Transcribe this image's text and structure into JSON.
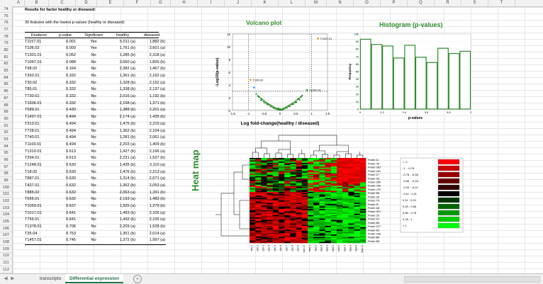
{
  "columns": [
    "A",
    "B",
    "C",
    "D",
    "E",
    "F",
    "G",
    "H",
    "I",
    "J",
    "K",
    "L",
    "M",
    "N",
    "O",
    "P",
    "Q",
    "R",
    "S",
    "T"
  ],
  "rows": [
    "74",
    "75",
    "76",
    "77",
    "78",
    "79",
    "80",
    "81",
    "82",
    "83",
    "84",
    "85",
    "86",
    "87",
    "88",
    "89",
    "90",
    "91",
    "92",
    "93",
    "94",
    "95",
    "96",
    "97",
    "98",
    "99",
    "100",
    "101",
    "102",
    "103",
    "104",
    "105",
    "106",
    "107",
    "108",
    "109",
    "110",
    "111",
    "112"
  ],
  "sheet": {
    "heading": "Results for factor healthy or diseased:",
    "subheading": "30 features with the lowest p-values (healthy or diseased):",
    "table": {
      "headers": [
        "Features",
        "p-value",
        "Significant",
        "healthy",
        "diseased"
      ],
      "rows": [
        [
          "T1157.01",
          "0.001",
          "Yes",
          "5,011 (a)",
          "1,882 (b)"
        ],
        [
          "T106.02",
          "0.003",
          "Yes",
          "1,761 (b)",
          "3,601 (a)"
        ],
        [
          "T1301.01",
          "0.052",
          "No",
          "1,285 (b)",
          "2,318 (a)"
        ],
        [
          "T1097.01",
          "0.088",
          "No",
          "3,660 (a)",
          "1,826 (b)"
        ],
        [
          "T98.02",
          "0.164",
          "No",
          "2,382 (a)",
          "1,467 (b)"
        ],
        [
          "T392.01",
          "0.332",
          "No",
          "1,361 (b)",
          "2,162 (a)"
        ],
        [
          "T30.02",
          "0.332",
          "No",
          "1,328 (b)",
          "2,152 (a)"
        ],
        [
          "T85.01",
          "0.332",
          "No",
          "1,338 (b)",
          "2,137 (a)"
        ],
        [
          "T730.01",
          "0.332",
          "No",
          "2,016 (a)",
          "1,192 (b)"
        ],
        [
          "T1606.01",
          "0.332",
          "No",
          "2,158 (a)",
          "1,371 (b)"
        ],
        [
          "T589.01",
          "0.430",
          "No",
          "1,388 (b)",
          "2,201 (a)"
        ],
        [
          "T1497.01",
          "0.494",
          "No",
          "2,174 (a)",
          "1,435 (b)"
        ],
        [
          "T313.01",
          "0.494",
          "No",
          "1,475 (b)",
          "2,219 (a)"
        ],
        [
          "T728.01",
          "0.494",
          "No",
          "1,362 (b)",
          "2,104 (a)"
        ],
        [
          "T740.01",
          "0.494",
          "No",
          "1,281 (b)",
          "2,061 (a)"
        ],
        [
          "T1169.01",
          "0.494",
          "No",
          "2,203 (a)",
          "1,409 (b)"
        ],
        [
          "T1310.01",
          "0.613",
          "No",
          "1,427 (b)",
          "2,166 (a)"
        ],
        [
          "T294.01",
          "0.613",
          "No",
          "2,231 (a)",
          "1,527 (b)"
        ],
        [
          "T1248.01",
          "0.630",
          "No",
          "1,435 (b)",
          "2,110 (a)"
        ],
        [
          "T18.02",
          "0.630",
          "No",
          "1,476 (b)",
          "2,213 (a)"
        ],
        [
          "T887.01",
          "0.630",
          "No",
          "1,314 (b)",
          "2,071 (a)"
        ],
        [
          "T437.01",
          "0.632",
          "No",
          "1,362 (b)",
          "2,053 (a)"
        ],
        [
          "T885.02",
          "0.632",
          "No",
          "2,063 (a)",
          "1,331 (b)"
        ],
        [
          "T565.01",
          "0.632",
          "No",
          "2,193 (a)",
          "1,483 (b)"
        ],
        [
          "T1050.01",
          "0.637",
          "No",
          "1,925 (a)",
          "1,279 (b)"
        ],
        [
          "T1017.01",
          "0.641",
          "No",
          "1,493 (b)",
          "2,105 (a)"
        ],
        [
          "T755.01",
          "0.641",
          "No",
          "1,432 (b)",
          "2,105 (a)"
        ],
        [
          "T1378.01",
          "0.706",
          "No",
          "2,209 (a)",
          "1,528 (b)"
        ],
        [
          "T35.04",
          "0.753",
          "No",
          "1,351 (b)",
          "2,014 (a)"
        ],
        [
          "T1457.01",
          "0.745",
          "No",
          "1,372 (b)",
          "1,997 (a)"
        ]
      ]
    }
  },
  "volcano": {
    "title": "Volcano plot",
    "xlabel": "Log fold-change(healthy / diseased)",
    "ylabel": "-Log10(p-value)",
    "labels": [
      "T1157.01",
      "T106.02",
      "T1097.01"
    ],
    "xticks": [
      "-1.5",
      "-1",
      "-0.5",
      "0",
      "0.5",
      "1",
      "1.5"
    ],
    "yticks": [
      "0",
      "2",
      "4",
      "6",
      "8",
      "10",
      "12"
    ]
  },
  "histogram": {
    "title": "Histogram (p-values)",
    "xlabel": "p-values",
    "ylabel": "Frequency",
    "xticks": [
      "0",
      "0.2",
      "0.4",
      "0.6",
      "0.8",
      "1"
    ],
    "yticks": [
      "0",
      "10",
      "20",
      "30",
      "40",
      "50",
      "60",
      "70",
      "80",
      "90",
      "100"
    ]
  },
  "heatmap": {
    "title": "Heat map",
    "row_labels": [
      "Protein 43",
      "Protein 730",
      "Protein 1063",
      "Protein 1051",
      "Protein 117",
      "Protein 729",
      "Protein 1359",
      "Protein 1764",
      "Protein 1709",
      "Protein 696",
      "Protein 118",
      "Protein 775",
      "Protein 25",
      "Protein 448",
      "Protein 1571",
      "Protein 120",
      "Protein 201",
      "Protein 555",
      "Protein 1577",
      "Protein 432",
      "Protein 1036",
      "Protein 889",
      "Protein 828"
    ],
    "col_labels": [
      "sick 1",
      "sick 2",
      "sick 3",
      "sick 4",
      "sick 5",
      "sick 6",
      "sick 7",
      "sick 8",
      "sick 9",
      "sick 10",
      "heal 1",
      "heal 2",
      "heal 3",
      "heal 4",
      "heal 5",
      "heal 6",
      "heal 7",
      "heal 8",
      "heal 9",
      "heal 10"
    ],
    "legend": [
      {
        "label": "< -1",
        "color": "#ff0000"
      },
      {
        "label": "-1 - -0,78",
        "color": "#cc0000"
      },
      {
        "label": "-0,78 - -0,56",
        "color": "#990000"
      },
      {
        "label": "-0,56 - -0,33",
        "color": "#660000"
      },
      {
        "label": "-0,33 - -0,11",
        "color": "#330000"
      },
      {
        "label": "-0,11 - 0,11",
        "color": "#000000"
      },
      {
        "label": "0,11 - 0,33",
        "color": "#003300"
      },
      {
        "label": "0,33 - 0,56",
        "color": "#006600"
      },
      {
        "label": "0,56 - 0,78",
        "color": "#009900"
      },
      {
        "label": "0,78 - 1",
        "color": "#00cc00"
      },
      {
        "label": "> 1",
        "color": "#00ff00"
      }
    ]
  },
  "chart_data": [
    {
      "type": "scatter",
      "title": "Volcano plot",
      "xlabel": "Log fold-change(healthy / diseased)",
      "ylabel": "-Log10(p-value)",
      "xlim": [
        -1.5,
        1.5
      ],
      "ylim": [
        0,
        12
      ],
      "threshold_y": 3,
      "threshold_x": [
        -1,
        1
      ],
      "highlighted_points": [
        {
          "label": "T1157.01",
          "x": 1.2,
          "y": 11.3,
          "color": "#ff8c00"
        },
        {
          "label": "T106.02",
          "x": -0.93,
          "y": 4.8,
          "color": "#ff8c00"
        },
        {
          "label": "T1097.01",
          "x": 0.85,
          "y": 3.2,
          "color": "#2e8b2e"
        },
        {
          "label": "",
          "x": -0.82,
          "y": 3.6,
          "color": "#1e90ff"
        }
      ],
      "cluster_points": [
        [
          -0.75,
          2.6
        ],
        [
          -0.7,
          2.3
        ],
        [
          -0.65,
          2.1
        ],
        [
          -0.6,
          1.9
        ],
        [
          -0.55,
          1.7
        ],
        [
          -0.5,
          1.5
        ],
        [
          -0.45,
          1.3
        ],
        [
          -0.4,
          1.15
        ],
        [
          -0.35,
          1.0
        ],
        [
          -0.3,
          0.85
        ],
        [
          -0.25,
          0.7
        ],
        [
          -0.2,
          0.55
        ],
        [
          -0.15,
          0.42
        ],
        [
          -0.1,
          0.3
        ],
        [
          -0.05,
          0.18
        ],
        [
          0,
          0.1
        ],
        [
          0.05,
          0.18
        ],
        [
          0.1,
          0.3
        ],
        [
          0.15,
          0.42
        ],
        [
          0.2,
          0.55
        ],
        [
          0.25,
          0.7
        ],
        [
          0.3,
          0.85
        ],
        [
          0.35,
          1.0
        ],
        [
          0.4,
          1.15
        ],
        [
          0.45,
          1.3
        ],
        [
          0.5,
          1.5
        ],
        [
          0.55,
          1.7
        ],
        [
          0.6,
          1.9
        ],
        [
          0.65,
          2.1
        ],
        [
          0.7,
          2.35
        ],
        [
          -0.48,
          1.2
        ],
        [
          -0.38,
          0.9
        ],
        [
          -0.28,
          0.6
        ],
        [
          -0.18,
          0.35
        ],
        [
          -0.08,
          0.15
        ],
        [
          0.02,
          0.05
        ],
        [
          0.12,
          0.2
        ],
        [
          0.22,
          0.45
        ],
        [
          0.32,
          0.7
        ],
        [
          0.42,
          1.0
        ],
        [
          -0.6,
          1.6
        ],
        [
          -0.52,
          1.4
        ],
        [
          0.52,
          1.3
        ],
        [
          0.62,
          1.7
        ],
        [
          -0.22,
          0.45
        ],
        [
          0.18,
          0.38
        ],
        [
          -0.12,
          0.22
        ],
        [
          0.08,
          0.12
        ],
        [
          0.28,
          0.62
        ],
        [
          -0.32,
          0.78
        ],
        [
          -0.42,
          1.05
        ],
        [
          0.38,
          0.95
        ],
        [
          0.48,
          1.25
        ],
        [
          -0.58,
          1.75
        ],
        [
          0.58,
          1.8
        ],
        [
          -0.68,
          2.2
        ],
        [
          0.68,
          2.2
        ],
        [
          -0.02,
          0.08
        ],
        [
          0.0,
          0.25
        ],
        [
          -0.05,
          0.35
        ]
      ]
    },
    {
      "type": "bar",
      "title": "Histogram (p-values)",
      "xlabel": "p-values",
      "ylabel": "Frequency",
      "categories": [
        "0-0.1",
        "0.1-0.2",
        "0.2-0.3",
        "0.3-0.4",
        "0.4-0.5",
        "0.5-0.6",
        "0.6-0.7",
        "0.7-0.8",
        "0.8-0.9",
        "0.9-1"
      ],
      "values": [
        93,
        86,
        84,
        68,
        85,
        69,
        62,
        81,
        74,
        77
      ],
      "ylim": [
        0,
        100
      ]
    }
  ],
  "tabs": [
    "transcripto",
    "Differential expression"
  ]
}
